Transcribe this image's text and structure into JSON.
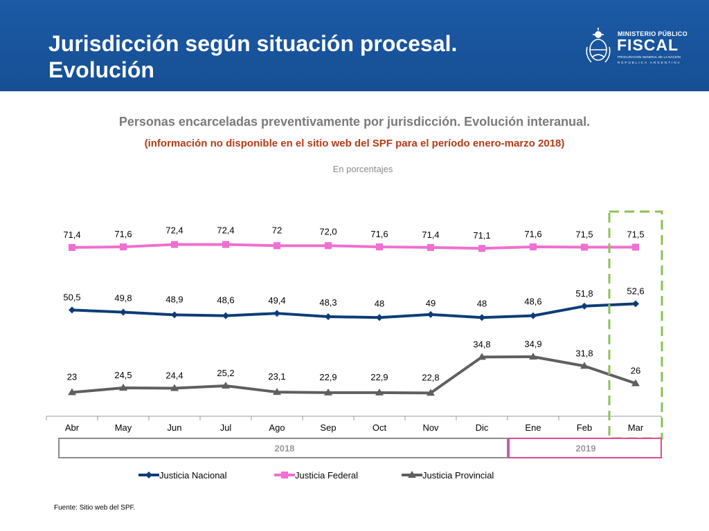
{
  "header": {
    "title_line1": "Jurisdicción según situación procesal.",
    "title_line2": "Evolución",
    "logo_line1": "MINISTERIO PÚBLICO",
    "logo_line2": "FISCAL",
    "logo_line3": "PROCURACIÓN GENERAL DE LA NACIÓN",
    "logo_line4": "REPÚBLICA ARGENTINA"
  },
  "chart_title": "Personas encarceladas preventivamente por jurisdicción. Evolución interanual.",
  "chart_note": "(información no disponible en el sitio web del SPF para el período enero-marzo 2018)",
  "units_label": "En porcentajes",
  "source": "Fuente: Sitio web del SPF.",
  "colors": {
    "header_bg": "#1c5aa6",
    "nacional": "#0d3d78",
    "federal": "#f06fd0",
    "provincial": "#5f5f5f",
    "highlight": "#8cc152",
    "year2019": "#e0479e"
  },
  "chart_data": {
    "type": "line",
    "categories": [
      "Abr",
      "May",
      "Jun",
      "Jul",
      "Ago",
      "Sep",
      "Oct",
      "Nov",
      "Dic",
      "Ene",
      "Feb",
      "Mar"
    ],
    "series": [
      {
        "name": "Justicia Nacional",
        "marker": "diamond",
        "values": [
          50.5,
          49.8,
          48.9,
          48.6,
          49.4,
          48.3,
          48,
          49,
          48,
          48.6,
          51.8,
          52.6
        ],
        "labels": [
          "50,5",
          "49,8",
          "48,9",
          "48,6",
          "49,4",
          "48,3",
          "48",
          "49",
          "48",
          "48,6",
          "51,8",
          "52,6"
        ]
      },
      {
        "name": "Justicia Federal",
        "marker": "square",
        "values": [
          71.4,
          71.6,
          72.4,
          72.4,
          72,
          72.0,
          71.6,
          71.4,
          71.1,
          71.6,
          71.5,
          71.5
        ],
        "labels": [
          "71,4",
          "71,6",
          "72,4",
          "72,4",
          "72",
          "72,0",
          "71,6",
          "71,4",
          "71,1",
          "71,6",
          "71,5",
          "71,5"
        ]
      },
      {
        "name": "Justicia Provincial",
        "marker": "triangle",
        "values": [
          23,
          24.5,
          24.4,
          25.2,
          23.1,
          22.9,
          22.9,
          22.8,
          34.8,
          34.9,
          31.8,
          26
        ],
        "labels": [
          "23",
          "24,5",
          "24,4",
          "25,2",
          "23,1",
          "22,9",
          "22,9",
          "22,8",
          "34,8",
          "34,9",
          "31,8",
          "26"
        ]
      }
    ],
    "year_groups": [
      {
        "label": "2018",
        "first": 0,
        "last": 8
      },
      {
        "label": "2019",
        "first": 9,
        "last": 11
      }
    ],
    "highlight_category": "Mar",
    "legend_position": "bottom",
    "grid": false
  }
}
